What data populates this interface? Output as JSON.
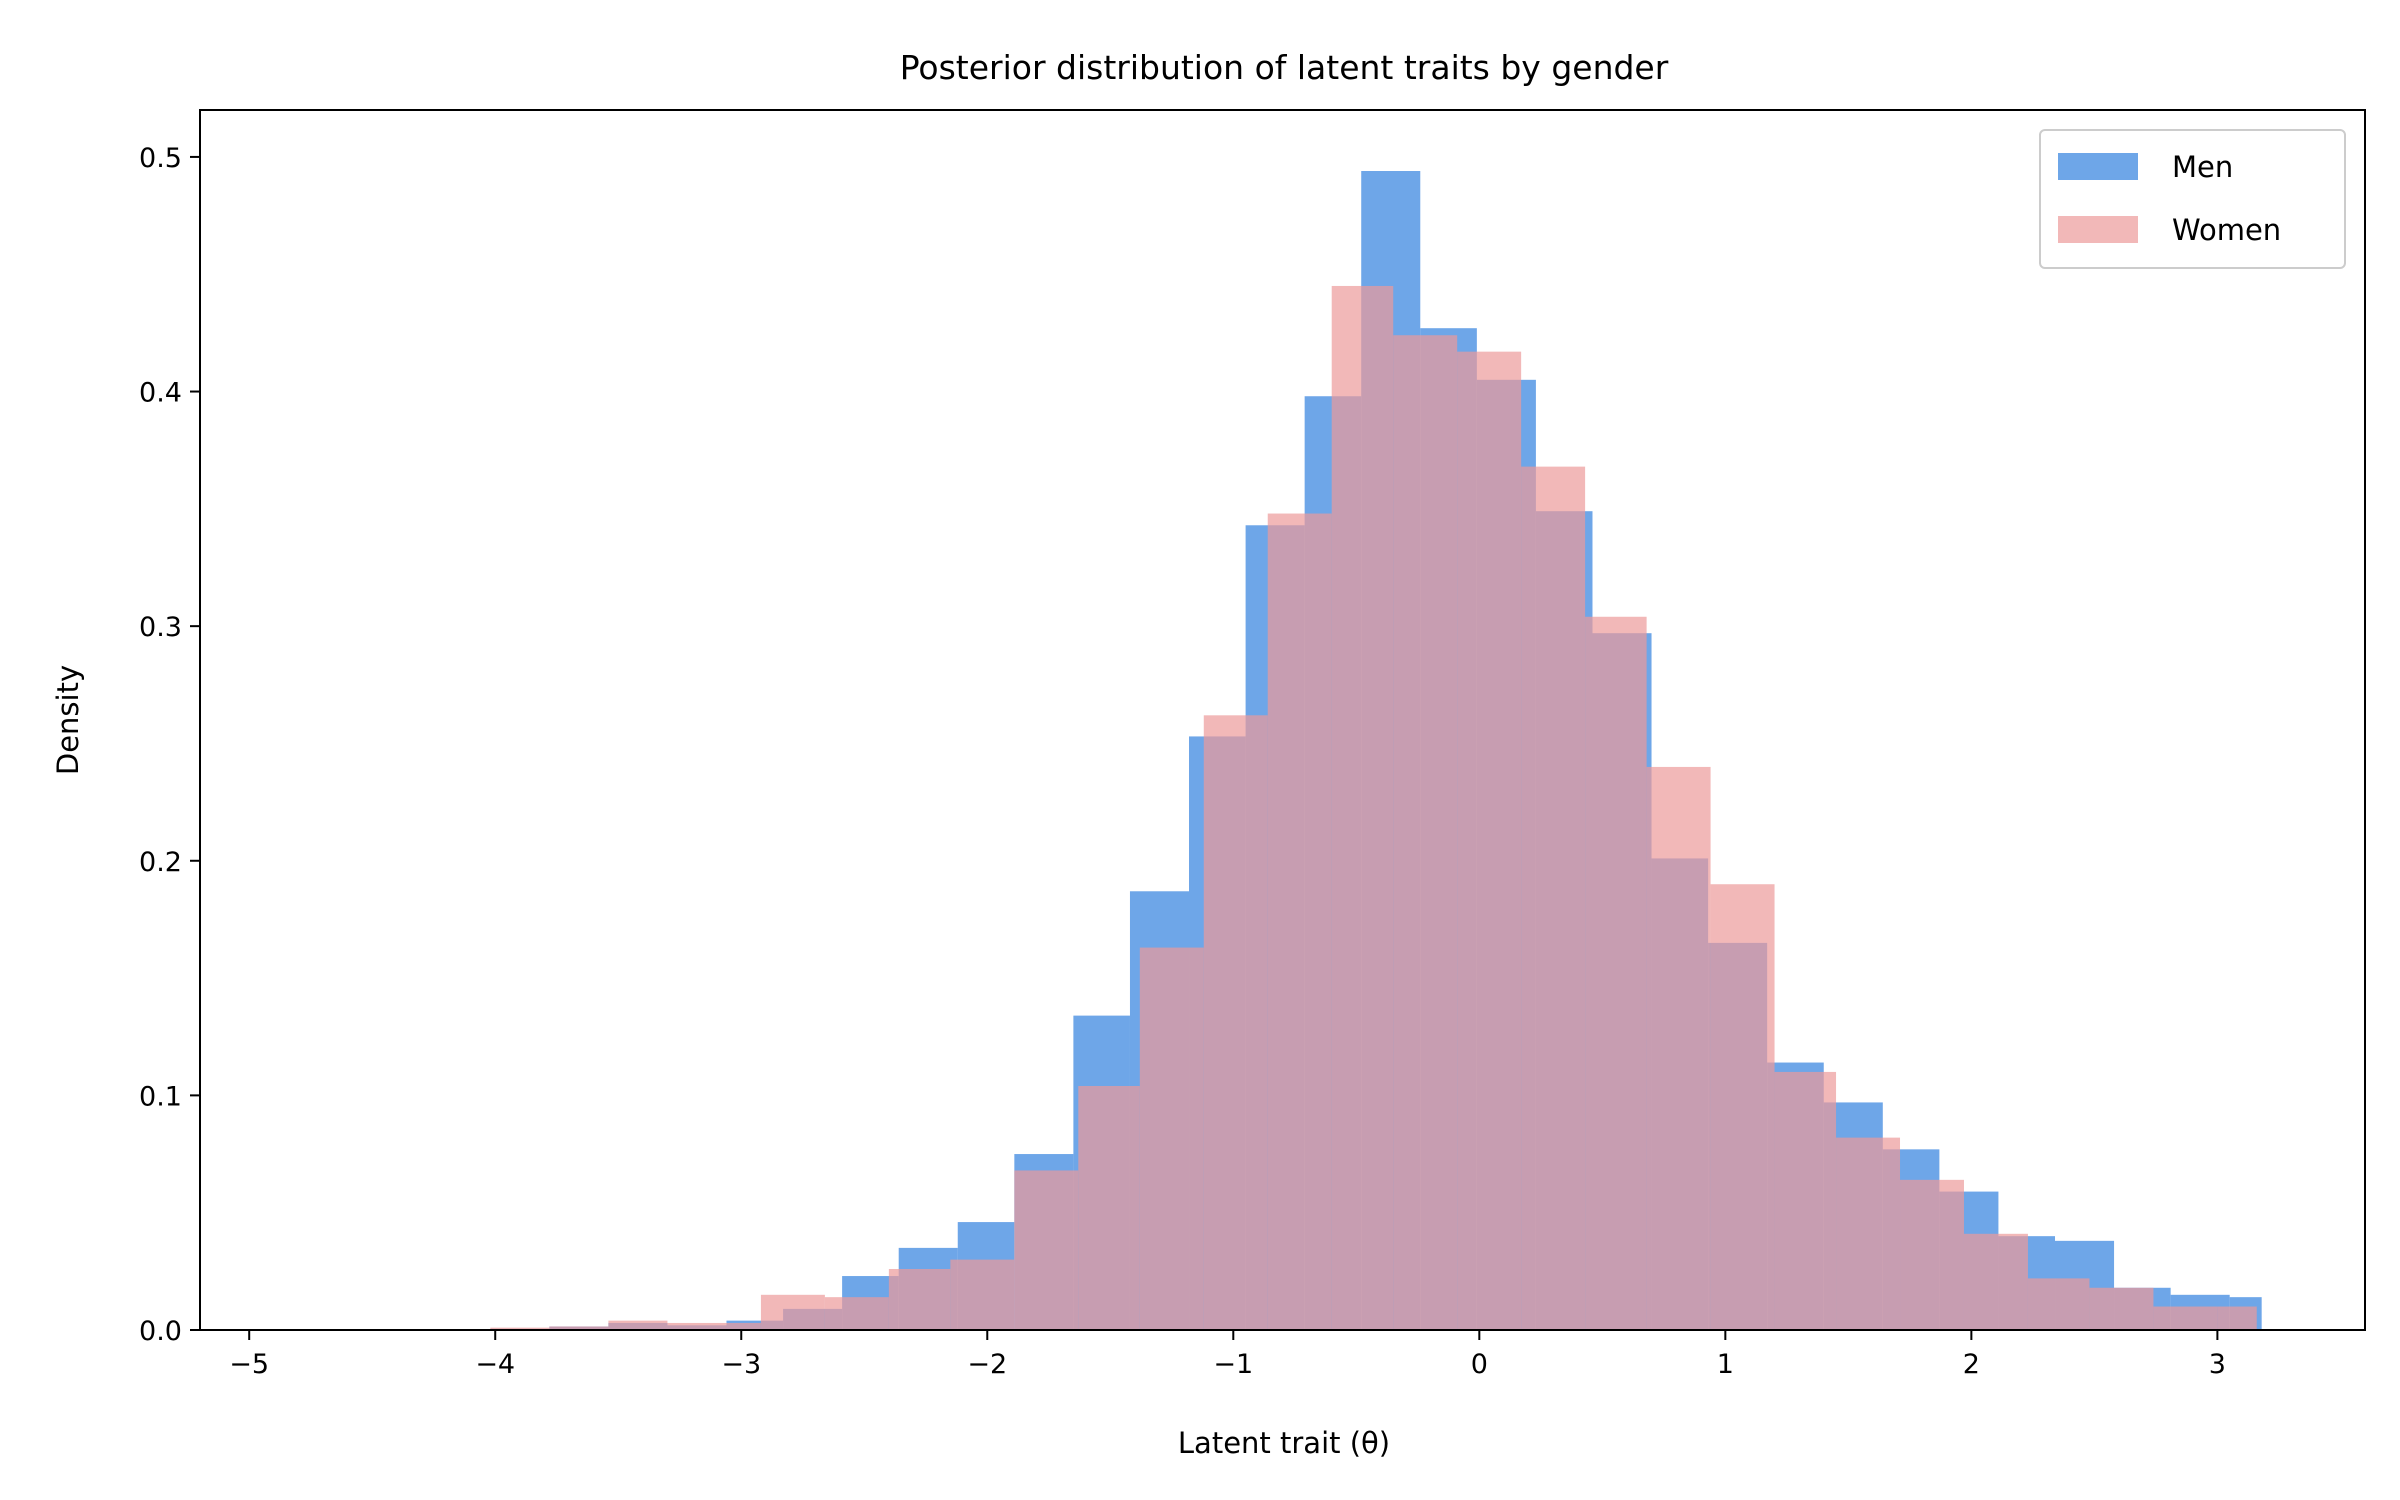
{
  "chart_data": {
    "type": "bar",
    "title": "Posterior distribution of latent traits by gender",
    "xlabel": "Latent trait (θ)",
    "ylabel": "Density",
    "xlim": [
      -5.2,
      3.6
    ],
    "ylim": [
      0,
      0.52
    ],
    "xticks": [
      -5,
      -4,
      -3,
      -2,
      -1,
      0,
      1,
      2,
      3
    ],
    "xtick_labels": [
      "−5",
      "−4",
      "−3",
      "−2",
      "−1",
      "0",
      "1",
      "2",
      "3"
    ],
    "yticks": [
      0,
      0.1,
      0.2,
      0.3,
      0.4,
      0.5
    ],
    "ytick_labels": [
      "0.0",
      "0.1",
      "0.2",
      "0.3",
      "0.4",
      "0.5"
    ],
    "grid": false,
    "legend_position": "top-right",
    "series": [
      {
        "name": "Men",
        "color": "#4a90e2",
        "opacity": 0.8,
        "bin_edges": [
          -4.02,
          -3.78,
          -3.54,
          -3.3,
          -3.06,
          -2.83,
          -2.59,
          -2.36,
          -2.12,
          -1.89,
          -1.65,
          -1.42,
          -1.18,
          -0.95,
          -0.71,
          -0.48,
          -0.24,
          -0.01,
          0.23,
          0.46,
          0.7,
          0.93,
          1.17,
          1.4,
          1.64,
          1.87,
          2.11,
          2.34,
          2.58,
          2.81,
          3.05,
          3.18
        ],
        "values": [
          0.0005,
          0.0015,
          0.003,
          0.002,
          0.004,
          0.009,
          0.023,
          0.035,
          0.046,
          0.075,
          0.134,
          0.187,
          0.253,
          0.343,
          0.398,
          0.494,
          0.427,
          0.405,
          0.349,
          0.297,
          0.201,
          0.165,
          0.114,
          0.097,
          0.077,
          0.059,
          0.04,
          0.038,
          0.018,
          0.015,
          0.014
        ]
      },
      {
        "name": "Women",
        "color": "#ec9a9a",
        "opacity": 0.7,
        "bin_edges": [
          -4.02,
          -3.78,
          -3.54,
          -3.3,
          -3.06,
          -2.92,
          -2.66,
          -2.4,
          -2.15,
          -1.89,
          -1.63,
          -1.38,
          -1.12,
          -0.86,
          -0.6,
          -0.35,
          -0.09,
          0.17,
          0.43,
          0.68,
          0.94,
          1.2,
          1.45,
          1.71,
          1.97,
          2.23,
          2.48,
          2.74,
          3.0,
          3.16
        ],
        "values": [
          0.001,
          0.0015,
          0.004,
          0.003,
          0.003,
          0.015,
          0.014,
          0.026,
          0.03,
          0.068,
          0.104,
          0.163,
          0.262,
          0.348,
          0.445,
          0.424,
          0.417,
          0.368,
          0.304,
          0.24,
          0.19,
          0.11,
          0.082,
          0.064,
          0.041,
          0.022,
          0.018,
          0.01,
          0.01
        ]
      }
    ]
  }
}
